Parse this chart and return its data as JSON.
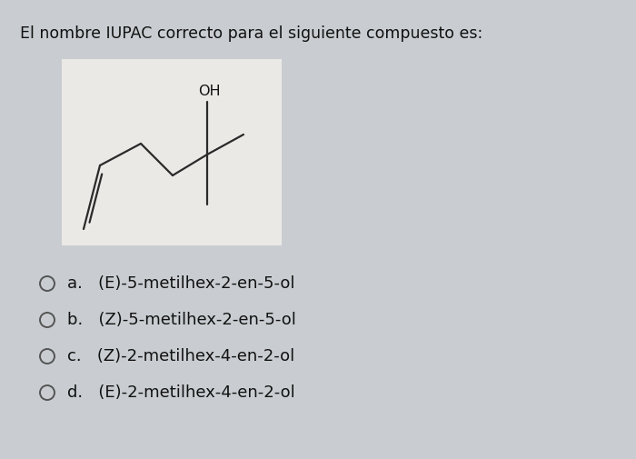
{
  "title": "El nombre IUPAC correcto para el siguiente compuesto es:",
  "title_fontsize": 12.5,
  "bg_color": "#c9cdd1",
  "molecule_box_color": "#eae9e6",
  "options": [
    "a.   (E)-5-metilhex-2-en-5-ol",
    "b.   (Z)-5-metilhex-2-en-5-ol",
    "c.   (Z)-2-metilhex-4-en-2-ol",
    "d.   (E)-2-metilhex-4-en-2-ol"
  ],
  "option_fontsize": 13,
  "circle_color": "#555555",
  "text_color": "#111111",
  "oh_label": "OH",
  "line_color": "#2a2a2a",
  "line_width": 1.6
}
